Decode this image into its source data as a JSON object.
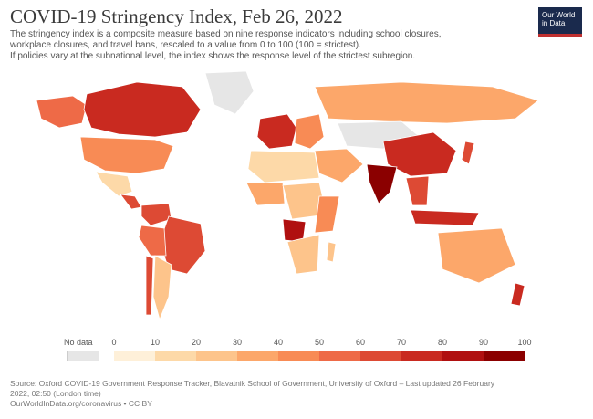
{
  "title": "COVID-19 Stringency Index, Feb 26, 2022",
  "subtitle": [
    "The stringency index is a composite measure based on nine response indicators including school closures,",
    "workplace closures, and travel bans, rescaled to a value from 0 to 100 (100 = strictest).",
    " If policies vary at the subnational level, the index shows the response level of the strictest subregion."
  ],
  "logo": {
    "line1": "Our World",
    "line2": "in Data"
  },
  "legend": {
    "no_data_label": "No data",
    "ticks": [
      "0",
      "10",
      "20",
      "30",
      "40",
      "50",
      "60",
      "70",
      "80",
      "90",
      "100"
    ],
    "colors": [
      "#fef0d9",
      "#fdd9a8",
      "#fdc48b",
      "#fca76a",
      "#f88b55",
      "#ee6a47",
      "#dd4a34",
      "#c92a20",
      "#b01010",
      "#8b0000"
    ]
  },
  "source": [
    "Source: Oxford COVID-19 Government Response Tracker, Blavatnik School of Government, University of Oxford – Last updated 26 February",
    "2022, 02:50 (London time)",
    "OurWorldInData.org/coronavirus • CC BY"
  ],
  "regions": [
    {
      "name": "Alaska",
      "color": "#ee6a47"
    },
    {
      "name": "Canada",
      "color": "#c92a20"
    },
    {
      "name": "Greenland",
      "color": "#e6e6e6"
    },
    {
      "name": "United States",
      "color": "#f88b55"
    },
    {
      "name": "Mexico",
      "color": "#fdd9a8"
    },
    {
      "name": "Central America",
      "color": "#dd4a34"
    },
    {
      "name": "Colombia Venezuela",
      "color": "#dd4a34"
    },
    {
      "name": "Brazil",
      "color": "#dd4a34"
    },
    {
      "name": "Peru Bolivia",
      "color": "#ee6a47"
    },
    {
      "name": "Argentina",
      "color": "#fdc48b"
    },
    {
      "name": "Chile",
      "color": "#dd4a34"
    },
    {
      "name": "Western Europe",
      "color": "#c92a20"
    },
    {
      "name": "Eastern Europe",
      "color": "#f88b55"
    },
    {
      "name": "Russia",
      "color": "#fca76a"
    },
    {
      "name": "Kazakhstan Mongolia",
      "color": "#e6e6e6"
    },
    {
      "name": "China",
      "color": "#c92a20"
    },
    {
      "name": "India",
      "color": "#8b0000"
    },
    {
      "name": "Middle East",
      "color": "#fca76a"
    },
    {
      "name": "North Africa",
      "color": "#fdd9a8"
    },
    {
      "name": "West Africa",
      "color": "#fca76a"
    },
    {
      "name": "Central Africa",
      "color": "#fdc48b"
    },
    {
      "name": "Angola",
      "color": "#b01010"
    },
    {
      "name": "East Africa",
      "color": "#f88b55"
    },
    {
      "name": "Southern Africa",
      "color": "#fdc48b"
    },
    {
      "name": "Southeast Asia",
      "color": "#dd4a34"
    },
    {
      "name": "Indonesia",
      "color": "#c92a20"
    },
    {
      "name": "Japan",
      "color": "#dd4a34"
    },
    {
      "name": "Australia",
      "color": "#fca76a"
    },
    {
      "name": "New Zealand",
      "color": "#c92a20"
    },
    {
      "name": "Madagascar",
      "color": "#fdc48b"
    }
  ]
}
